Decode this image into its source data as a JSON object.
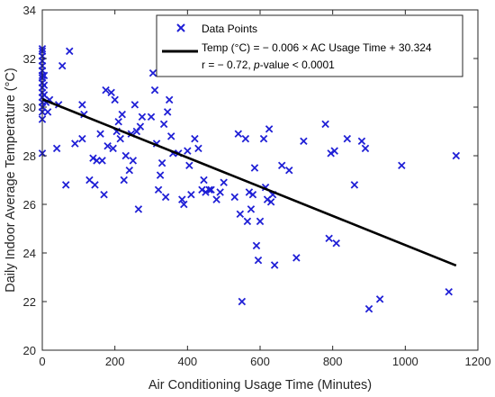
{
  "chart_data": {
    "type": "scatter",
    "xlabel": "Air Conditioning Usage Time (Minutes)",
    "ylabel": "Daily Indoor Average Temperature (°C)",
    "xlim": [
      0,
      1200
    ],
    "ylim": [
      20,
      34
    ],
    "xticks": [
      0,
      200,
      400,
      600,
      800,
      1000,
      1200
    ],
    "yticks": [
      20,
      22,
      24,
      26,
      28,
      30,
      32,
      34
    ],
    "grid": false,
    "legend_position": "top-right",
    "colors": {
      "points": "#1f1fd6",
      "fit_line": "#000000",
      "axes": "#262626"
    },
    "series": [
      {
        "name": "Data Points",
        "marker": "x",
        "points": [
          [
            0,
            32.4
          ],
          [
            0,
            32.3
          ],
          [
            0,
            32.1
          ],
          [
            0,
            31.9
          ],
          [
            0,
            31.7
          ],
          [
            0,
            31.5
          ],
          [
            0,
            31.3
          ],
          [
            0,
            31.2
          ],
          [
            0,
            31.0
          ],
          [
            0,
            30.8
          ],
          [
            0,
            30.6
          ],
          [
            0,
            30.4
          ],
          [
            0,
            30.2
          ],
          [
            0,
            30.0
          ],
          [
            0,
            29.8
          ],
          [
            0,
            29.5
          ],
          [
            0,
            28.1
          ],
          [
            5,
            31.3
          ],
          [
            5,
            30.9
          ],
          [
            5,
            30.5
          ],
          [
            10,
            30.2
          ],
          [
            15,
            29.8
          ],
          [
            20,
            30.3
          ],
          [
            40,
            28.3
          ],
          [
            45,
            30.1
          ],
          [
            55,
            31.7
          ],
          [
            65,
            26.8
          ],
          [
            75,
            32.3
          ],
          [
            90,
            28.5
          ],
          [
            110,
            28.7
          ],
          [
            110,
            30.1
          ],
          [
            115,
            29.7
          ],
          [
            130,
            27.0
          ],
          [
            140,
            27.9
          ],
          [
            145,
            26.8
          ],
          [
            150,
            27.8
          ],
          [
            160,
            28.9
          ],
          [
            165,
            27.8
          ],
          [
            170,
            26.4
          ],
          [
            175,
            30.7
          ],
          [
            180,
            28.4
          ],
          [
            190,
            30.6
          ],
          [
            195,
            28.3
          ],
          [
            200,
            30.3
          ],
          [
            205,
            29.0
          ],
          [
            210,
            29.4
          ],
          [
            215,
            28.7
          ],
          [
            220,
            29.7
          ],
          [
            225,
            27.0
          ],
          [
            230,
            28.0
          ],
          [
            240,
            27.4
          ],
          [
            245,
            28.9
          ],
          [
            250,
            27.8
          ],
          [
            255,
            30.1
          ],
          [
            260,
            29.0
          ],
          [
            265,
            25.8
          ],
          [
            270,
            29.2
          ],
          [
            275,
            29.6
          ],
          [
            300,
            29.6
          ],
          [
            305,
            31.4
          ],
          [
            310,
            30.7
          ],
          [
            315,
            28.5
          ],
          [
            320,
            26.6
          ],
          [
            325,
            27.2
          ],
          [
            330,
            27.7
          ],
          [
            335,
            29.3
          ],
          [
            340,
            26.3
          ],
          [
            345,
            29.8
          ],
          [
            350,
            30.3
          ],
          [
            355,
            28.8
          ],
          [
            360,
            28.1
          ],
          [
            375,
            28.1
          ],
          [
            385,
            26.2
          ],
          [
            390,
            26.0
          ],
          [
            400,
            28.2
          ],
          [
            405,
            27.6
          ],
          [
            410,
            26.4
          ],
          [
            420,
            28.7
          ],
          [
            430,
            28.3
          ],
          [
            440,
            26.6
          ],
          [
            445,
            27.0
          ],
          [
            450,
            26.5
          ],
          [
            460,
            26.6
          ],
          [
            465,
            26.6
          ],
          [
            480,
            26.2
          ],
          [
            490,
            26.5
          ],
          [
            500,
            26.9
          ],
          [
            530,
            26.3
          ],
          [
            540,
            28.9
          ],
          [
            545,
            25.6
          ],
          [
            550,
            22.0
          ],
          [
            560,
            28.7
          ],
          [
            565,
            25.3
          ],
          [
            570,
            26.5
          ],
          [
            575,
            25.8
          ],
          [
            580,
            26.4
          ],
          [
            585,
            27.5
          ],
          [
            590,
            24.3
          ],
          [
            595,
            23.7
          ],
          [
            600,
            25.3
          ],
          [
            610,
            28.7
          ],
          [
            615,
            26.7
          ],
          [
            620,
            26.2
          ],
          [
            625,
            29.1
          ],
          [
            630,
            26.1
          ],
          [
            635,
            26.4
          ],
          [
            640,
            23.5
          ],
          [
            660,
            27.6
          ],
          [
            680,
            27.4
          ],
          [
            700,
            23.8
          ],
          [
            720,
            28.6
          ],
          [
            780,
            29.3
          ],
          [
            790,
            24.6
          ],
          [
            795,
            28.1
          ],
          [
            805,
            28.2
          ],
          [
            810,
            24.4
          ],
          [
            840,
            28.7
          ],
          [
            860,
            26.8
          ],
          [
            880,
            28.6
          ],
          [
            890,
            28.3
          ],
          [
            900,
            21.7
          ],
          [
            930,
            22.1
          ],
          [
            990,
            27.6
          ],
          [
            1120,
            22.4
          ],
          [
            1140,
            28.0
          ]
        ]
      },
      {
        "name": "Temp (°C) = − 0.006 × AC Usage Time + 30.324",
        "type": "line",
        "slope": -0.006,
        "intercept": 30.324,
        "x_range": [
          0,
          1140
        ]
      }
    ],
    "legend": {
      "entries": [
        "Data Points",
        "Temp (°C) = − 0.006 × AC Usage Time + 30.324"
      ],
      "stats_prefix": "r = − 0.72, ",
      "stats_italic": "p",
      "stats_suffix": "-value < 0.0001"
    }
  }
}
